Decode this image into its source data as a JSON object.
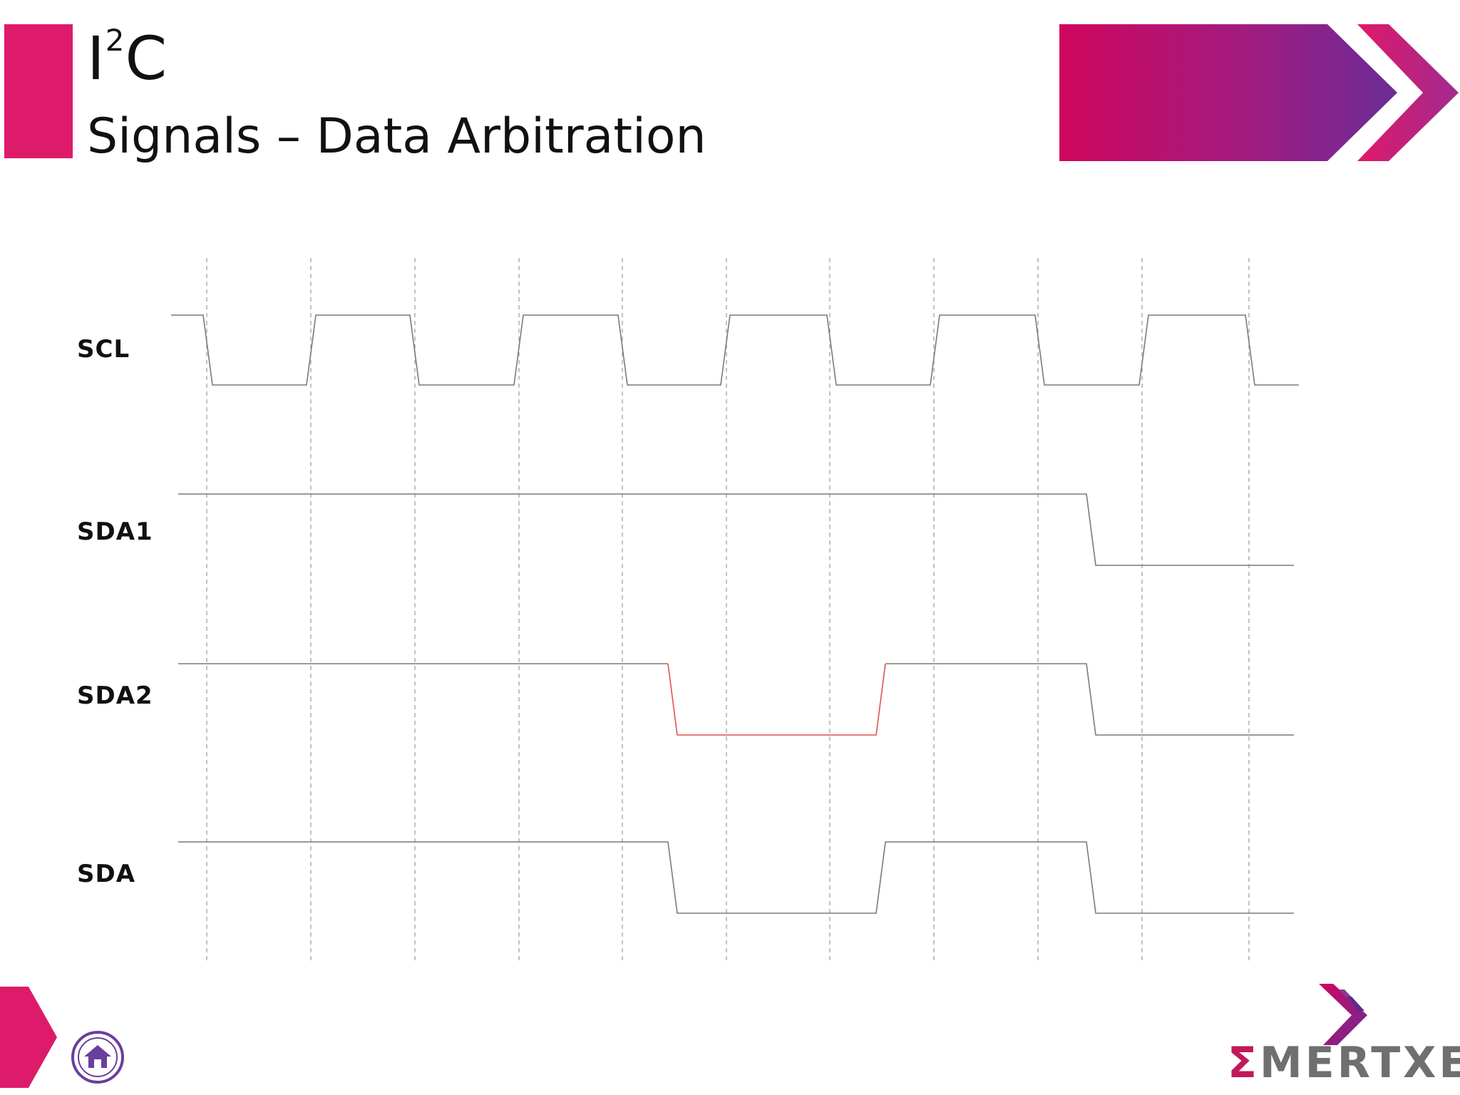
{
  "header": {
    "title_base": "I",
    "title_sup": "2",
    "title_tail": "C",
    "subtitle": "Signals – Data Arbitration"
  },
  "diagram": {
    "labels": {
      "scl": "SCL",
      "sda1": "SDA1",
      "sda2": "SDA2",
      "sda": "SDA"
    }
  },
  "footer": {
    "logo_sigma": "Σ",
    "logo_text": "MERTXE"
  },
  "colors": {
    "accent": "#de1b6a",
    "banner_start": "#d0065e",
    "banner_end": "#6a2c96",
    "wave": "#7a7a7a",
    "highlight": "#e0524f",
    "home_icon": "#6a3e9e"
  },
  "icons": {
    "home": "home-icon",
    "nav_arrow": "chevron-right-icon",
    "banner": "double-chevron-icon"
  }
}
